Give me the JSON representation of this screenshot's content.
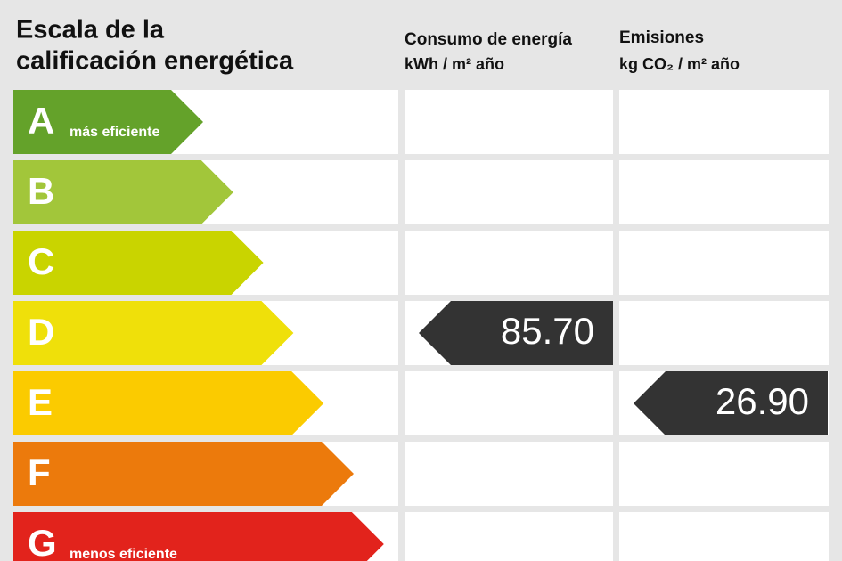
{
  "header": {
    "title_lines": [
      "Escala de la",
      "calificación energética"
    ],
    "columns": [
      {
        "title": "Consumo de energía",
        "unit": "kWh / m² año"
      },
      {
        "title": "Emisiones",
        "unit": "kg CO₂ / m² año"
      }
    ]
  },
  "rows": [
    {
      "letter": "A",
      "note": "más eficiente",
      "color": "#64a22a"
    },
    {
      "letter": "B",
      "color": "#a2c63a"
    },
    {
      "letter": "C",
      "color": "#c9d400"
    },
    {
      "letter": "D",
      "color": "#efe00a",
      "energy": "85.70"
    },
    {
      "letter": "E",
      "color": "#fbcb00",
      "emissions": "26.90"
    },
    {
      "letter": "F",
      "color": "#ec7a0c"
    },
    {
      "letter": "G",
      "note": "menos eficiente",
      "color": "#e2231c"
    }
  ]
}
